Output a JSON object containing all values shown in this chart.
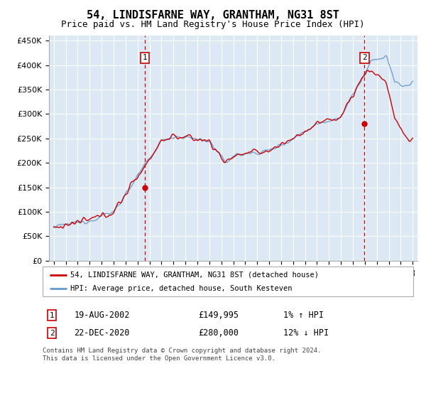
{
  "title": "54, LINDISFARNE WAY, GRANTHAM, NG31 8ST",
  "subtitle": "Price paid vs. HM Land Registry's House Price Index (HPI)",
  "legend_line1": "54, LINDISFARNE WAY, GRANTHAM, NG31 8ST (detached house)",
  "legend_line2": "HPI: Average price, detached house, South Kesteven",
  "footer": "Contains HM Land Registry data © Crown copyright and database right 2024.\nThis data is licensed under the Open Government Licence v3.0.",
  "sale1_date": "19-AUG-2002",
  "sale1_price": "£149,995",
  "sale1_hpi": "1% ↑ HPI",
  "sale1_x": 2002.63,
  "sale1_y": 149995,
  "sale2_date": "22-DEC-2020",
  "sale2_price": "£280,000",
  "sale2_hpi": "12% ↓ HPI",
  "sale2_x": 2020.97,
  "sale2_y": 280000,
  "ylim": [
    0,
    460000
  ],
  "xlim_left": 1994.6,
  "xlim_right": 2025.4,
  "background_color": "#dce9f5",
  "red_line_color": "#cc0000",
  "blue_line_color": "#6699cc",
  "grid_color": "#ffffff",
  "dashed_color": "#cc0000",
  "box_color": "#cc0000",
  "title_fontsize": 11,
  "subtitle_fontsize": 9
}
